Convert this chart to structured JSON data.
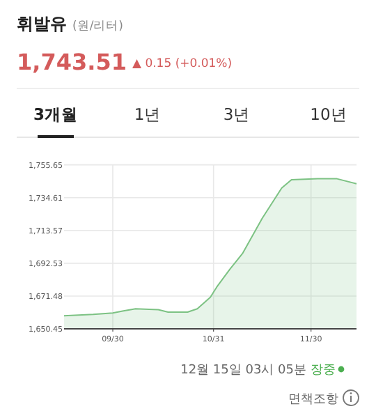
{
  "chart_data": {
    "type": "area",
    "title": "휘발유",
    "subtitle": "(원/리터)",
    "annotations": [
      "1,743.51",
      "▲ 0.15 (+0.01%)",
      "3개월",
      "1년",
      "3년",
      "10년",
      "12월 15일 03시 05분",
      "장중",
      "면책조항"
    ],
    "x": [
      "--09-15",
      "--09-24",
      "--09-30",
      "--10-03",
      "--10-07",
      "--10-14",
      "--10-17",
      "--10-23",
      "--10-26",
      "--10-30",
      "--11-01",
      "--11-05",
      "--11-09",
      "--11-15",
      "--11-21",
      "--11-24",
      "--12-02",
      "--12-08",
      "--12-14"
    ],
    "series": [
      {
        "color": "#7cc283",
        "values": [
          1658.8,
          1659.7,
          1660.6,
          1661.8,
          1663.3,
          1662.7,
          1661.2,
          1661.2,
          1663.3,
          1670.7,
          1677.3,
          1688.6,
          1699.0,
          1721.4,
          1740.8,
          1746.1,
          1746.7,
          1746.7,
          1743.5
        ]
      }
    ],
    "xlim": [
      "--09-15",
      "--12-14"
    ],
    "xticks": [
      {
        "value": "--09-30",
        "label": "09/30"
      },
      {
        "value": "--10-31",
        "label": "10/31"
      },
      {
        "value": "--11-30",
        "label": "11/30"
      }
    ],
    "ylim": [
      1650.45,
      1755.65
    ],
    "yticks": [
      {
        "value": 1650.45,
        "label": "1,650.45"
      },
      {
        "value": 1671.48,
        "label": "1,671.48"
      },
      {
        "value": 1692.53,
        "label": "1,692.53"
      },
      {
        "value": 1713.57,
        "label": "1,713.57"
      },
      {
        "value": 1734.61,
        "label": "1,734.61"
      },
      {
        "value": 1755.65,
        "label": "1,755.65"
      }
    ],
    "grid": true
  }
}
